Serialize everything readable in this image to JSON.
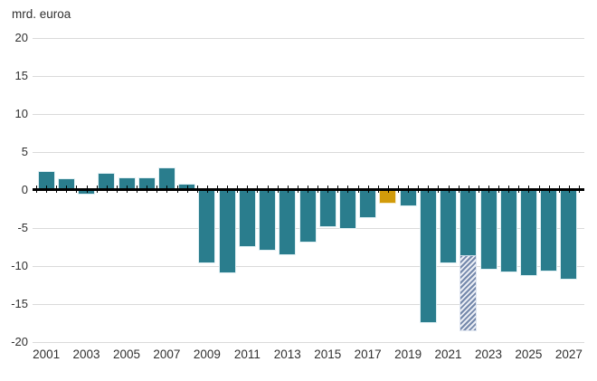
{
  "chart_data": {
    "type": "bar",
    "title": "mrd. euroa",
    "ylabel": "mrd. euroa",
    "xlabel": "",
    "ylim": [
      -20,
      20
    ],
    "ytick_interval": 5,
    "ytick_labels": [
      "20",
      "15",
      "10",
      "5",
      "0",
      "-5",
      "-10",
      "-15",
      "-20"
    ],
    "xtick_labels": [
      "2001",
      "2003",
      "2005",
      "2007",
      "2009",
      "2011",
      "2013",
      "2015",
      "2017",
      "2019",
      "2021",
      "2023",
      "2025",
      "2027"
    ],
    "grid": "horizontal",
    "legend": "none",
    "colors": {
      "default_bar": "#2A7D8D",
      "highlight_bar": "#D29B0A",
      "hatched_bar_stripe": "#7488AB",
      "hatched_bar_bg": "#EAEDF4",
      "gridline": "#DADADA",
      "zero_line": "#000000",
      "text": "#303030"
    },
    "categories": [
      "2001",
      "2002",
      "2003",
      "2004",
      "2005",
      "2006",
      "2007",
      "2008",
      "2009",
      "2010",
      "2011",
      "2012",
      "2013",
      "2014",
      "2015",
      "2016",
      "2017",
      "2018",
      "2019",
      "2020",
      "2021",
      "2022",
      "2023",
      "2024",
      "2025",
      "2026",
      "2027"
    ],
    "bars": [
      {
        "year": "2001",
        "value": 2.4,
        "style": "teal"
      },
      {
        "year": "2002",
        "value": 1.4,
        "style": "teal"
      },
      {
        "year": "2003",
        "value": -0.5,
        "style": "teal"
      },
      {
        "year": "2004",
        "value": 2.1,
        "style": "teal"
      },
      {
        "year": "2005",
        "value": 1.5,
        "style": "teal"
      },
      {
        "year": "2006",
        "value": 1.6,
        "style": "teal"
      },
      {
        "year": "2007",
        "value": 2.9,
        "style": "teal"
      },
      {
        "year": "2008",
        "value": 0.7,
        "style": "teal"
      },
      {
        "year": "2009",
        "value": -9.5,
        "style": "teal"
      },
      {
        "year": "2010",
        "value": -10.8,
        "style": "teal"
      },
      {
        "year": "2011",
        "value": -7.4,
        "style": "teal"
      },
      {
        "year": "2012",
        "value": -7.9,
        "style": "teal"
      },
      {
        "year": "2013",
        "value": -8.5,
        "style": "teal"
      },
      {
        "year": "2014",
        "value": -6.8,
        "style": "teal"
      },
      {
        "year": "2015",
        "value": -4.8,
        "style": "teal"
      },
      {
        "year": "2016",
        "value": -5.0,
        "style": "teal"
      },
      {
        "year": "2017",
        "value": -3.6,
        "style": "teal"
      },
      {
        "year": "2018",
        "value": -1.7,
        "style": "orange"
      },
      {
        "year": "2019",
        "value": -2.0,
        "style": "teal"
      },
      {
        "year": "2020",
        "value": -17.4,
        "style": "teal"
      },
      {
        "year": "2021",
        "value": -9.5,
        "style": "teal"
      },
      {
        "year": "2022",
        "value": -18.5,
        "style": "stacked",
        "segments": [
          {
            "value": -8.7,
            "style": "teal"
          },
          {
            "value": -9.8,
            "style": "hatched"
          }
        ]
      },
      {
        "year": "2023",
        "value": -10.4,
        "style": "teal"
      },
      {
        "year": "2024",
        "value": -10.7,
        "style": "teal"
      },
      {
        "year": "2025",
        "value": -11.2,
        "style": "teal"
      },
      {
        "year": "2026",
        "value": -10.6,
        "style": "teal"
      },
      {
        "year": "2027",
        "value": -11.7,
        "style": "teal"
      }
    ]
  }
}
